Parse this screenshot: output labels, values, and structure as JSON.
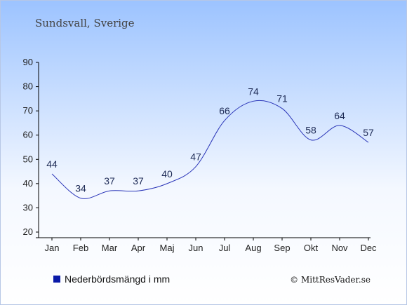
{
  "chart_data": {
    "type": "line",
    "title": "Sundsvall, Sverige",
    "categories": [
      "Jan",
      "Feb",
      "Mar",
      "Apr",
      "Maj",
      "Jun",
      "Jul",
      "Aug",
      "Sep",
      "Okt",
      "Nov",
      "Dec"
    ],
    "series": [
      {
        "name": "Nederbördsmängd i mm",
        "values": [
          44,
          34,
          37,
          37,
          40,
          47,
          66,
          74,
          71,
          58,
          64,
          57
        ]
      }
    ],
    "ylim": [
      20,
      90
    ],
    "yticks": [
      20,
      30,
      40,
      50,
      60,
      70,
      80,
      90
    ],
    "grid": false,
    "legend_position": "bottom-left",
    "colors": {
      "line": "#2a35b8",
      "legend_swatch": "#0a1aa8",
      "bg_top": "#9cc3ff",
      "bg_bottom": "#ffffff"
    }
  },
  "copyright": "© MittResVader.se"
}
